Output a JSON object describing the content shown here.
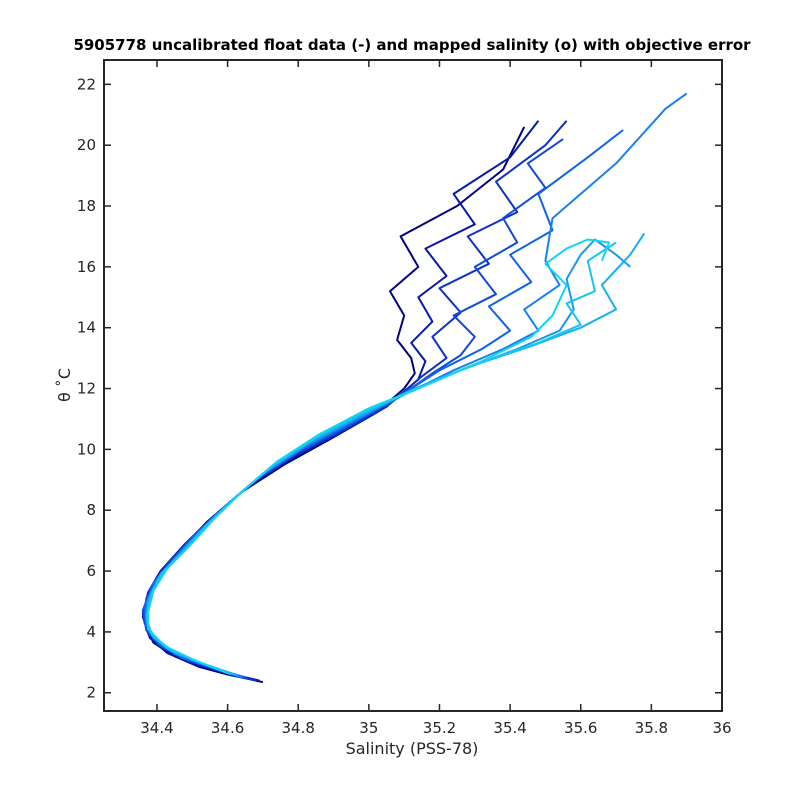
{
  "chart_data": {
    "type": "line",
    "title": "5905778 uncalibrated float data (-) and mapped salinity (o) with objective error",
    "xlabel": "Salinity (PSS-78)",
    "ylabel": "θ ˚C",
    "xlim": [
      34.25,
      36.0
    ],
    "ylim": [
      1.4,
      22.8
    ],
    "xticks": [
      34.4,
      34.6,
      34.8,
      35,
      35.2,
      35.4,
      35.6,
      35.8,
      36
    ],
    "xtick_labels": [
      "34.4",
      "34.6",
      "34.8",
      "35",
      "35.2",
      "35.4",
      "35.6",
      "35.8",
      "36"
    ],
    "yticks": [
      2,
      4,
      6,
      8,
      10,
      12,
      14,
      16,
      18,
      20,
      22
    ],
    "ytick_labels": [
      "2",
      "4",
      "6",
      "8",
      "10",
      "12",
      "14",
      "16",
      "18",
      "20",
      "22"
    ],
    "grid": false,
    "legend": "none",
    "colors": [
      "#000080",
      "#0a1aa8",
      "#0d32c6",
      "#1048dc",
      "#0e62ea",
      "#1880f0",
      "#1a98ee",
      "#18b0ec",
      "#14c6ee",
      "#10d4f4"
    ],
    "series": [
      {
        "values": [
          [
            34.7,
            2.35
          ],
          [
            34.6,
            2.6
          ],
          [
            34.52,
            2.85
          ],
          [
            34.45,
            3.2
          ],
          [
            34.39,
            3.65
          ],
          [
            34.365,
            4.3
          ],
          [
            34.37,
            5.1
          ],
          [
            34.4,
            5.8
          ],
          [
            34.46,
            6.6
          ],
          [
            34.54,
            7.6
          ],
          [
            34.64,
            8.6
          ],
          [
            34.76,
            9.5
          ],
          [
            34.9,
            10.4
          ],
          [
            35.02,
            11.2
          ],
          [
            35.1,
            12.0
          ],
          [
            35.13,
            12.5
          ],
          [
            35.12,
            13.0
          ],
          [
            35.08,
            13.6
          ],
          [
            35.1,
            14.4
          ],
          [
            35.06,
            15.2
          ],
          [
            35.14,
            16.0
          ],
          [
            35.09,
            17.0
          ],
          [
            35.25,
            18.0
          ],
          [
            35.38,
            19.2
          ],
          [
            35.44,
            20.6
          ]
        ]
      },
      {
        "values": [
          [
            34.69,
            2.4
          ],
          [
            34.58,
            2.7
          ],
          [
            34.5,
            2.95
          ],
          [
            34.43,
            3.3
          ],
          [
            34.38,
            3.8
          ],
          [
            34.36,
            4.5
          ],
          [
            34.375,
            5.3
          ],
          [
            34.41,
            6.0
          ],
          [
            34.48,
            6.9
          ],
          [
            34.56,
            7.8
          ],
          [
            34.66,
            8.8
          ],
          [
            34.78,
            9.7
          ],
          [
            34.92,
            10.55
          ],
          [
            35.05,
            11.4
          ],
          [
            35.14,
            12.3
          ],
          [
            35.16,
            12.9
          ],
          [
            35.12,
            13.5
          ],
          [
            35.18,
            14.2
          ],
          [
            35.14,
            15.0
          ],
          [
            35.22,
            15.7
          ],
          [
            35.16,
            16.6
          ],
          [
            35.3,
            17.4
          ],
          [
            35.24,
            18.4
          ],
          [
            35.4,
            19.6
          ],
          [
            35.48,
            20.8
          ]
        ]
      },
      {
        "values": [
          [
            34.68,
            2.4
          ],
          [
            34.57,
            2.75
          ],
          [
            34.49,
            3.05
          ],
          [
            34.42,
            3.45
          ],
          [
            34.375,
            3.95
          ],
          [
            34.36,
            4.6
          ],
          [
            34.38,
            5.4
          ],
          [
            34.42,
            6.1
          ],
          [
            34.49,
            7.0
          ],
          [
            34.57,
            7.9
          ],
          [
            34.67,
            8.9
          ],
          [
            34.79,
            9.8
          ],
          [
            34.93,
            10.65
          ],
          [
            35.06,
            11.5
          ],
          [
            35.15,
            12.4
          ],
          [
            35.22,
            13.0
          ],
          [
            35.18,
            13.7
          ],
          [
            35.26,
            14.5
          ],
          [
            35.2,
            15.3
          ],
          [
            35.34,
            16.1
          ],
          [
            35.28,
            17.0
          ],
          [
            35.42,
            17.8
          ],
          [
            35.36,
            18.8
          ],
          [
            35.5,
            20.0
          ],
          [
            35.56,
            20.8
          ]
        ]
      },
      {
        "values": [
          [
            34.66,
            2.45
          ],
          [
            34.56,
            2.8
          ],
          [
            34.48,
            3.1
          ],
          [
            34.41,
            3.55
          ],
          [
            34.37,
            4.05
          ],
          [
            34.36,
            4.7
          ],
          [
            34.385,
            5.5
          ],
          [
            34.43,
            6.2
          ],
          [
            34.5,
            7.1
          ],
          [
            34.58,
            8.0
          ],
          [
            34.68,
            9.0
          ],
          [
            34.8,
            9.9
          ],
          [
            34.94,
            10.75
          ],
          [
            35.07,
            11.6
          ],
          [
            35.18,
            12.5
          ],
          [
            35.26,
            13.1
          ],
          [
            35.3,
            13.7
          ],
          [
            35.24,
            14.4
          ],
          [
            35.36,
            15.1
          ],
          [
            35.3,
            16.0
          ],
          [
            35.42,
            16.8
          ],
          [
            35.38,
            17.6
          ],
          [
            35.5,
            18.6
          ],
          [
            35.45,
            19.4
          ],
          [
            35.55,
            20.2
          ]
        ]
      },
      {
        "values": [
          [
            34.65,
            2.5
          ],
          [
            34.55,
            2.85
          ],
          [
            34.47,
            3.15
          ],
          [
            34.405,
            3.6
          ],
          [
            34.37,
            4.15
          ],
          [
            34.365,
            4.8
          ],
          [
            34.39,
            5.6
          ],
          [
            34.44,
            6.3
          ],
          [
            34.51,
            7.2
          ],
          [
            34.59,
            8.1
          ],
          [
            34.69,
            9.1
          ],
          [
            34.81,
            10.0
          ],
          [
            34.95,
            10.85
          ],
          [
            35.08,
            11.7
          ],
          [
            35.2,
            12.6
          ],
          [
            35.32,
            13.3
          ],
          [
            35.4,
            13.9
          ],
          [
            35.34,
            14.7
          ],
          [
            35.46,
            15.5
          ],
          [
            35.4,
            16.4
          ],
          [
            35.52,
            17.2
          ],
          [
            35.48,
            18.4
          ],
          [
            35.62,
            19.6
          ],
          [
            35.72,
            20.5
          ]
        ]
      },
      {
        "values": [
          [
            34.64,
            2.5
          ],
          [
            34.54,
            2.9
          ],
          [
            34.46,
            3.25
          ],
          [
            34.4,
            3.7
          ],
          [
            34.37,
            4.25
          ],
          [
            34.37,
            4.95
          ],
          [
            34.4,
            5.7
          ],
          [
            34.45,
            6.4
          ],
          [
            34.52,
            7.3
          ],
          [
            34.6,
            8.2
          ],
          [
            34.7,
            9.2
          ],
          [
            34.82,
            10.1
          ],
          [
            34.96,
            10.95
          ],
          [
            35.1,
            11.8
          ],
          [
            35.24,
            12.6
          ],
          [
            35.38,
            13.3
          ],
          [
            35.48,
            13.9
          ],
          [
            35.44,
            14.6
          ],
          [
            35.54,
            15.4
          ],
          [
            35.5,
            16.2
          ],
          [
            35.52,
            17.6
          ],
          [
            35.7,
            19.4
          ],
          [
            35.84,
            21.2
          ],
          [
            35.9,
            21.7
          ]
        ]
      },
      {
        "values": [
          [
            34.63,
            2.55
          ],
          [
            34.53,
            2.95
          ],
          [
            34.45,
            3.3
          ],
          [
            34.39,
            3.8
          ],
          [
            34.37,
            4.35
          ],
          [
            34.375,
            5.05
          ],
          [
            34.405,
            5.8
          ],
          [
            34.46,
            6.5
          ],
          [
            34.53,
            7.4
          ],
          [
            34.61,
            8.3
          ],
          [
            34.71,
            9.3
          ],
          [
            34.83,
            10.2
          ],
          [
            34.97,
            11.05
          ],
          [
            35.11,
            11.9
          ],
          [
            35.26,
            12.6
          ],
          [
            35.42,
            13.3
          ],
          [
            35.54,
            13.9
          ],
          [
            35.58,
            14.6
          ],
          [
            35.56,
            15.6
          ],
          [
            35.6,
            16.4
          ],
          [
            35.64,
            16.9
          ],
          [
            35.7,
            16.4
          ],
          [
            35.74,
            16.0
          ]
        ]
      },
      {
        "values": [
          [
            34.62,
            2.6
          ],
          [
            34.52,
            3.0
          ],
          [
            34.44,
            3.4
          ],
          [
            34.385,
            3.9
          ],
          [
            34.37,
            4.45
          ],
          [
            34.38,
            5.15
          ],
          [
            34.41,
            5.9
          ],
          [
            34.47,
            6.6
          ],
          [
            34.54,
            7.5
          ],
          [
            34.62,
            8.4
          ],
          [
            34.72,
            9.4
          ],
          [
            34.84,
            10.3
          ],
          [
            34.98,
            11.15
          ],
          [
            35.12,
            11.95
          ],
          [
            35.28,
            12.7
          ],
          [
            35.46,
            13.4
          ],
          [
            35.6,
            14.0
          ],
          [
            35.7,
            14.6
          ],
          [
            35.66,
            15.4
          ],
          [
            35.74,
            16.4
          ],
          [
            35.78,
            17.1
          ]
        ]
      },
      {
        "values": [
          [
            34.61,
            2.6
          ],
          [
            34.51,
            3.05
          ],
          [
            34.43,
            3.45
          ],
          [
            34.38,
            4.0
          ],
          [
            34.37,
            4.55
          ],
          [
            34.385,
            5.25
          ],
          [
            34.42,
            6.0
          ],
          [
            34.48,
            6.7
          ],
          [
            34.55,
            7.6
          ],
          [
            34.63,
            8.5
          ],
          [
            34.73,
            9.5
          ],
          [
            34.85,
            10.4
          ],
          [
            34.99,
            11.25
          ],
          [
            35.14,
            12.0
          ],
          [
            35.3,
            12.8
          ],
          [
            35.48,
            13.5
          ],
          [
            35.6,
            14.1
          ],
          [
            35.56,
            14.8
          ],
          [
            35.64,
            15.2
          ],
          [
            35.62,
            16.2
          ],
          [
            35.7,
            16.8
          ]
        ]
      },
      {
        "values": [
          [
            34.6,
            2.65
          ],
          [
            34.5,
            3.1
          ],
          [
            34.42,
            3.55
          ],
          [
            34.375,
            4.1
          ],
          [
            34.375,
            4.65
          ],
          [
            34.39,
            5.35
          ],
          [
            34.43,
            6.1
          ],
          [
            34.49,
            6.8
          ],
          [
            34.56,
            7.7
          ],
          [
            34.64,
            8.6
          ],
          [
            34.74,
            9.6
          ],
          [
            34.86,
            10.5
          ],
          [
            35.0,
            11.35
          ],
          [
            35.16,
            12.1
          ],
          [
            35.32,
            12.9
          ],
          [
            35.46,
            13.7
          ],
          [
            35.52,
            14.4
          ],
          [
            35.56,
            15.4
          ],
          [
            35.5,
            16.1
          ],
          [
            35.56,
            16.6
          ],
          [
            35.62,
            16.9
          ],
          [
            35.68,
            16.8
          ],
          [
            35.66,
            16.2
          ]
        ]
      }
    ]
  }
}
